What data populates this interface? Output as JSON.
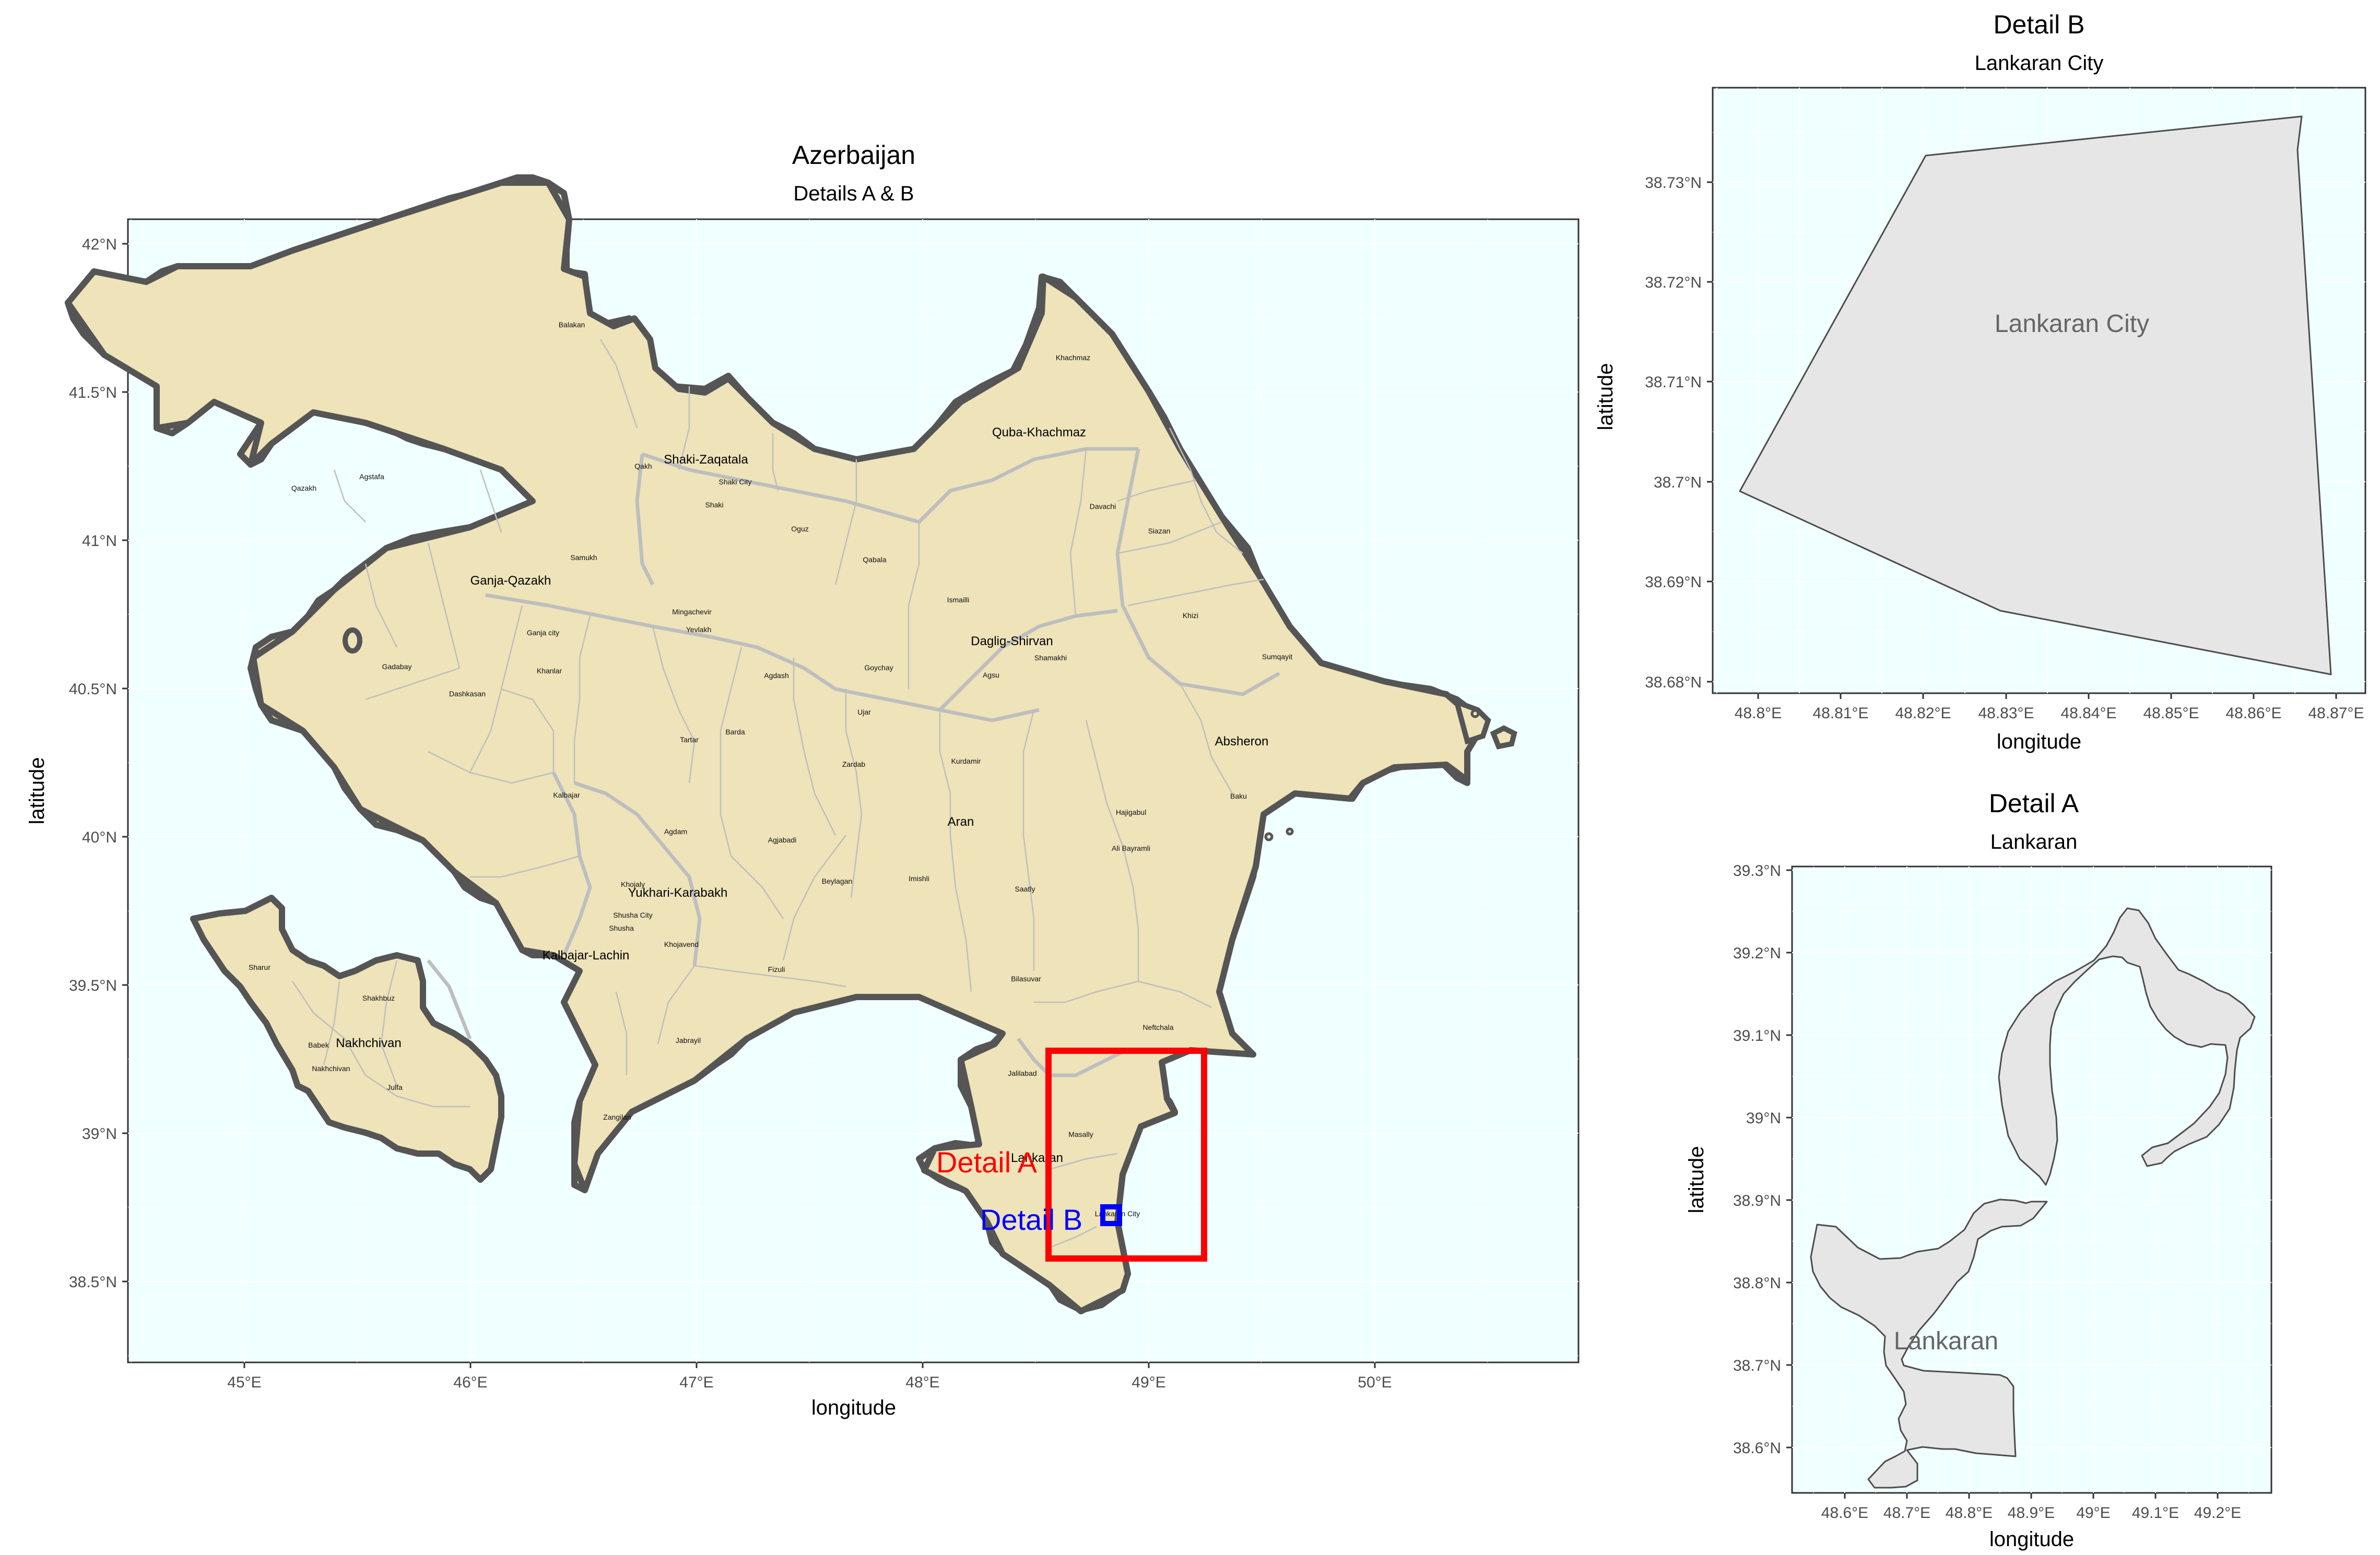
{
  "main_map": {
    "title": "Azerbaijan",
    "subtitle": "Details A & B",
    "xlabel": "longitude",
    "ylabel": "latitude",
    "x_ticks": [
      "45°E",
      "46°E",
      "47°E",
      "48°E",
      "49°E",
      "50°E"
    ],
    "y_ticks": [
      "42°N",
      "41.5°N",
      "41°N",
      "40.5°N",
      "40°N",
      "39.5°N",
      "39°N",
      "38.5°N"
    ],
    "regions": [
      {
        "name": "Shaki-Zaqatala"
      },
      {
        "name": "Quba-Khachmaz"
      },
      {
        "name": "Ganja-Qazakh"
      },
      {
        "name": "Daglig-Shirvan"
      },
      {
        "name": "Absheron"
      },
      {
        "name": "Aran"
      },
      {
        "name": "Yukhari-Karabakh"
      },
      {
        "name": "Kalbajar-Lachin"
      },
      {
        "name": "Nakhchivan"
      },
      {
        "name": "Lankaran"
      }
    ],
    "districts": [
      "Balakan",
      "Khachmaz",
      "Qakh",
      "Shaki City",
      "Shaki",
      "Qazakh",
      "Agstafa",
      "Oguz",
      "Qabala",
      "Davachi",
      "Siazan",
      "Samukh",
      "Ismailli",
      "Mingachevir",
      "Yevlakh",
      "Khizi",
      "Ganja city",
      "Khanlar",
      "Gadabay",
      "Agsu",
      "Shamakhi",
      "Sumqayit",
      "Dashkasan",
      "Agdash",
      "Goychay",
      "Ujar",
      "Tartar",
      "Barda",
      "Zardab",
      "Kurdamir",
      "Baku",
      "Kalbajar",
      "Hajigabul",
      "Agdam",
      "Agjabadi",
      "Ali Bayramli",
      "Khojaly",
      "Beylagan",
      "Imishli",
      "Saatly",
      "Shusha City",
      "Shusha",
      "Khojavend",
      "Fizuli",
      "Bilasuvar",
      "Sharur",
      "Shakhbuz",
      "Babek",
      "Nakhchivan",
      "Julfa",
      "Jabrayil",
      "Zangilan",
      "Neftchala",
      "Jalilabad",
      "Masally",
      "Lankaran City"
    ],
    "annotations": {
      "detail_a_label": "Detail A",
      "detail_b_label": "Detail B"
    },
    "colors": {
      "sea": "#F0FFFF",
      "land": "#EEE3B9",
      "border": "#555555",
      "inner": "#BEBEBE",
      "detail_a": "#FF0000",
      "detail_b": "#0000FF"
    }
  },
  "detail_b": {
    "title": "Detail B",
    "subtitle": "Lankaran City",
    "xlabel": "longitude",
    "ylabel": "latitude",
    "x_ticks": [
      "48.8°E",
      "48.81°E",
      "48.82°E",
      "48.83°E",
      "48.84°E",
      "48.85°E",
      "48.86°E",
      "48.87°E"
    ],
    "y_ticks": [
      "38.73°N",
      "38.72°N",
      "38.71°N",
      "38.7°N",
      "38.69°N",
      "38.68°N"
    ],
    "label": "Lankaran City"
  },
  "detail_a": {
    "title": "Detail A",
    "subtitle": "Lankaran",
    "xlabel": "longitude",
    "ylabel": "latitude",
    "x_ticks": [
      "48.6°E",
      "48.7°E",
      "48.8°E",
      "48.9°E",
      "49°E",
      "49.1°E",
      "49.2°E"
    ],
    "y_ticks": [
      "39.3°N",
      "39.2°N",
      "39.1°N",
      "39°N",
      "38.9°N",
      "38.8°N",
      "38.7°N",
      "38.6°N"
    ],
    "label": "Lankaran"
  }
}
